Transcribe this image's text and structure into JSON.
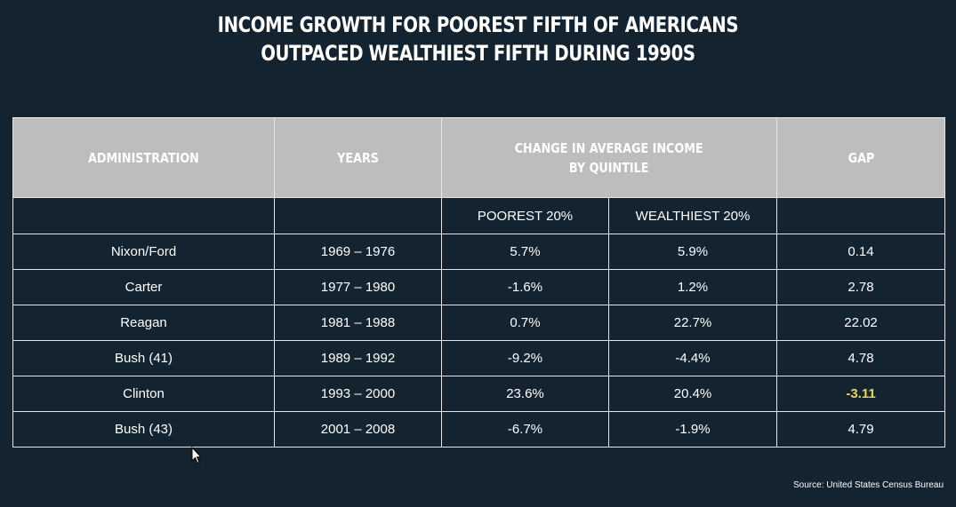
{
  "title": {
    "line1": "INCOME GROWTH FOR POOREST FIFTH OF AMERICANS",
    "line2": "OUTPACED WEALTHIEST FIFTH DURING 1990S"
  },
  "chart_data": {
    "type": "table",
    "columns": {
      "administration": "ADMINISTRATION",
      "years": "YEARS",
      "change_line1": "CHANGE IN AVERAGE INCOME",
      "change_line2": "BY QUINTILE",
      "gap": "GAP",
      "poorest": "POOREST 20%",
      "wealthiest": "WEALTHIEST 20%"
    },
    "rows": [
      {
        "administration": "Nixon/Ford",
        "years": "1969 – 1976",
        "poorest": "5.7%",
        "wealthiest": "5.9%",
        "gap": "0.14"
      },
      {
        "administration": "Carter",
        "years": "1977 – 1980",
        "poorest": "-1.6%",
        "wealthiest": "1.2%",
        "gap": "2.78"
      },
      {
        "administration": "Reagan",
        "years": "1981 – 1988",
        "poorest": "0.7%",
        "wealthiest": "22.7%",
        "gap": "22.02"
      },
      {
        "administration": "Bush (41)",
        "years": "1989 – 1992",
        "poorest": "-9.2%",
        "wealthiest": "-4.4%",
        "gap": "4.78"
      },
      {
        "administration": "Clinton",
        "years": "1993 – 2000",
        "poorest": "23.6%",
        "wealthiest": "20.4%",
        "gap": "-3.11"
      },
      {
        "administration": "Bush (43)",
        "years": "2001 – 2008",
        "poorest": "-6.7%",
        "wealthiest": "-1.9%",
        "gap": "4.79"
      }
    ],
    "highlight_color": "#e6d94f"
  },
  "source": "Source: United States Census Bureau",
  "colors": {
    "background": "#13232f",
    "header_fill": "#bdbdbd",
    "header_text": "#1f2d38"
  }
}
